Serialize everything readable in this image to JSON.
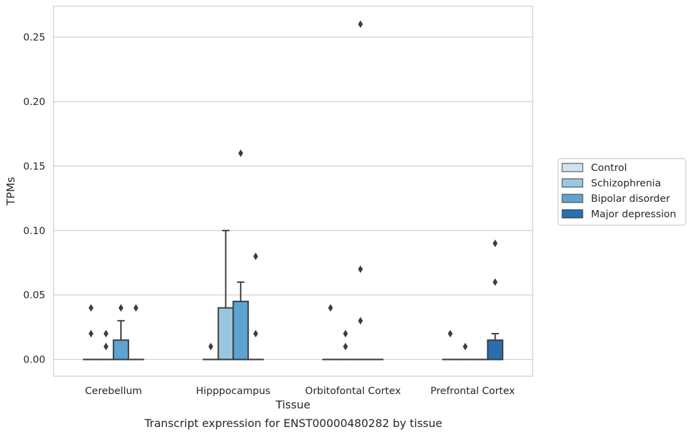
{
  "chart_data": {
    "type": "box",
    "caption": "Transcript expression for ENST00000480282 by tissue",
    "xlabel": "Tissue",
    "ylabel": "TPMs",
    "ylim": [
      -0.013,
      0.274
    ],
    "yticks": [
      0.0,
      0.05,
      0.1,
      0.15,
      0.2,
      0.25
    ],
    "ytick_labels": [
      "0.00",
      "0.05",
      "0.10",
      "0.15",
      "0.20",
      "0.25"
    ],
    "grid": true,
    "legend_position": "right",
    "categories": [
      "Cerebellum",
      "Hipppocampus",
      "Orbitofontal Cortex",
      "Prefrontal Cortex"
    ],
    "series": [
      {
        "name": "Control",
        "color": "#d1e2f2",
        "boxes": [
          {
            "q1": 0,
            "median": 0,
            "q3": 0,
            "whisker_low": 0,
            "whisker_high": 0,
            "outliers": [
              0.02,
              0.04
            ]
          },
          {
            "q1": 0,
            "median": 0,
            "q3": 0,
            "whisker_low": 0,
            "whisker_high": 0,
            "outliers": [
              0.01
            ]
          },
          {
            "q1": 0,
            "median": 0,
            "q3": 0,
            "whisker_low": 0,
            "whisker_high": 0,
            "outliers": [
              0.04
            ]
          },
          {
            "q1": 0,
            "median": 0,
            "q3": 0,
            "whisker_low": 0,
            "whisker_high": 0,
            "outliers": [
              0.02
            ]
          }
        ]
      },
      {
        "name": "Schizophrenia",
        "color": "#9ac7e0",
        "boxes": [
          {
            "q1": 0,
            "median": 0,
            "q3": 0,
            "whisker_low": 0,
            "whisker_high": 0,
            "outliers": [
              0.01,
              0.02
            ]
          },
          {
            "q1": 0,
            "median": 0,
            "q3": 0.04,
            "whisker_low": 0,
            "whisker_high": 0.1,
            "outliers": []
          },
          {
            "q1": 0,
            "median": 0,
            "q3": 0,
            "whisker_low": 0,
            "whisker_high": 0,
            "outliers": [
              0.01,
              0.02
            ]
          },
          {
            "q1": 0,
            "median": 0,
            "q3": 0,
            "whisker_low": 0,
            "whisker_high": 0,
            "outliers": [
              0.01
            ]
          }
        ]
      },
      {
        "name": "Bipolar disorder",
        "color": "#5fa3d0",
        "boxes": [
          {
            "q1": 0,
            "median": 0,
            "q3": 0.015,
            "whisker_low": 0,
            "whisker_high": 0.03,
            "outliers": [
              0.04
            ]
          },
          {
            "q1": 0,
            "median": 0,
            "q3": 0.045,
            "whisker_low": 0,
            "whisker_high": 0.06,
            "outliers": [
              0.16
            ]
          },
          {
            "q1": 0,
            "median": 0,
            "q3": 0,
            "whisker_low": 0,
            "whisker_high": 0,
            "outliers": [
              0.03,
              0.07,
              0.26
            ]
          },
          {
            "q1": 0,
            "median": 0,
            "q3": 0,
            "whisker_low": 0,
            "whisker_high": 0,
            "outliers": []
          }
        ]
      },
      {
        "name": "Major depression",
        "color": "#2a6eb0",
        "boxes": [
          {
            "q1": 0,
            "median": 0,
            "q3": 0,
            "whisker_low": 0,
            "whisker_high": 0,
            "outliers": [
              0.04
            ]
          },
          {
            "q1": 0,
            "median": 0,
            "q3": 0,
            "whisker_low": 0,
            "whisker_high": 0,
            "outliers": [
              0.02,
              0.08
            ]
          },
          {
            "q1": 0,
            "median": 0,
            "q3": 0,
            "whisker_low": 0,
            "whisker_high": 0,
            "outliers": []
          },
          {
            "q1": 0,
            "median": 0,
            "q3": 0.015,
            "whisker_low": 0,
            "whisker_high": 0.02,
            "outliers": [
              0.06,
              0.09
            ]
          }
        ]
      }
    ]
  }
}
